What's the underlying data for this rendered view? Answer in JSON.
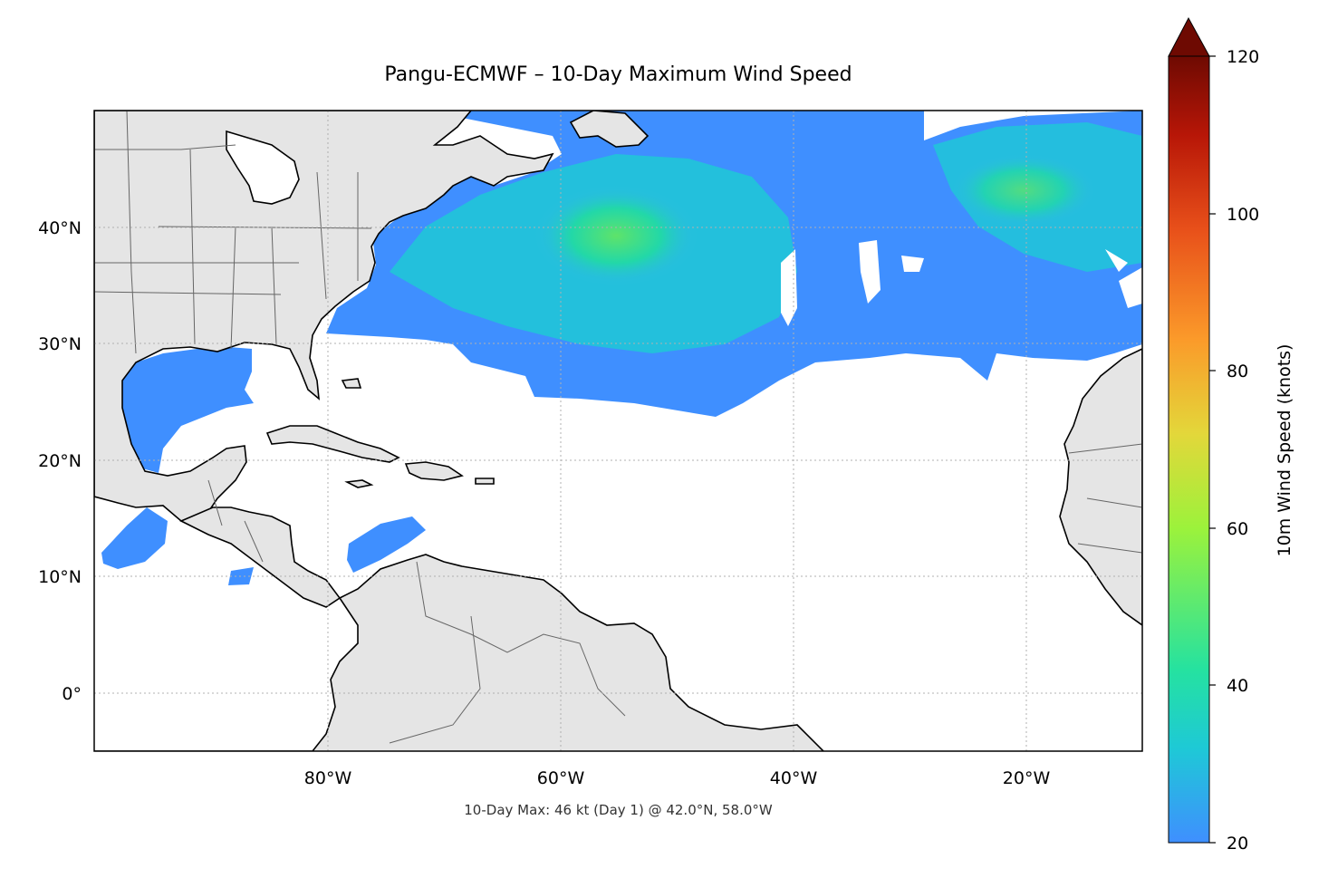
{
  "title": "Pangu-ECMWF – 10-Day Maximum Wind Speed",
  "footer_note": "10-Day Max: 46 kt (Day 1) @ 42.0°N, 58.0°W",
  "map": {
    "extent": {
      "lon": [
        -100,
        -10
      ],
      "lat": [
        -5,
        50
      ]
    },
    "lon_ticks": [
      {
        "value": -80,
        "label": "80°W"
      },
      {
        "value": -60,
        "label": "60°W"
      },
      {
        "value": -40,
        "label": "40°W"
      },
      {
        "value": -20,
        "label": "20°W"
      }
    ],
    "lat_ticks": [
      {
        "value": 0,
        "label": "0°"
      },
      {
        "value": 10,
        "label": "10°N"
      },
      {
        "value": 20,
        "label": "20°N"
      },
      {
        "value": 30,
        "label": "30°N"
      },
      {
        "value": 40,
        "label": "40°N"
      }
    ],
    "land_color": "#e5e5e5",
    "gridlines": "dotted",
    "wind_field_colors": {
      "low": "#3f8fff",
      "mid": "#22d8a8",
      "high": "#5ee36a"
    }
  },
  "colorbar": {
    "label": "10m Wind Speed (knots)",
    "min": 20,
    "max": 120,
    "extend": "max",
    "ticks": [
      {
        "value": 20,
        "label": "20"
      },
      {
        "value": 40,
        "label": "40"
      },
      {
        "value": 60,
        "label": "60"
      },
      {
        "value": 80,
        "label": "80"
      },
      {
        "value": 100,
        "label": "100"
      },
      {
        "value": 120,
        "label": "120"
      }
    ],
    "colormap": [
      "#3f8fff",
      "#1ec9d6",
      "#25e2a0",
      "#9cf23b",
      "#e3d73a",
      "#fb9a2a",
      "#e8501a",
      "#b71607",
      "#6e0a02"
    ]
  }
}
